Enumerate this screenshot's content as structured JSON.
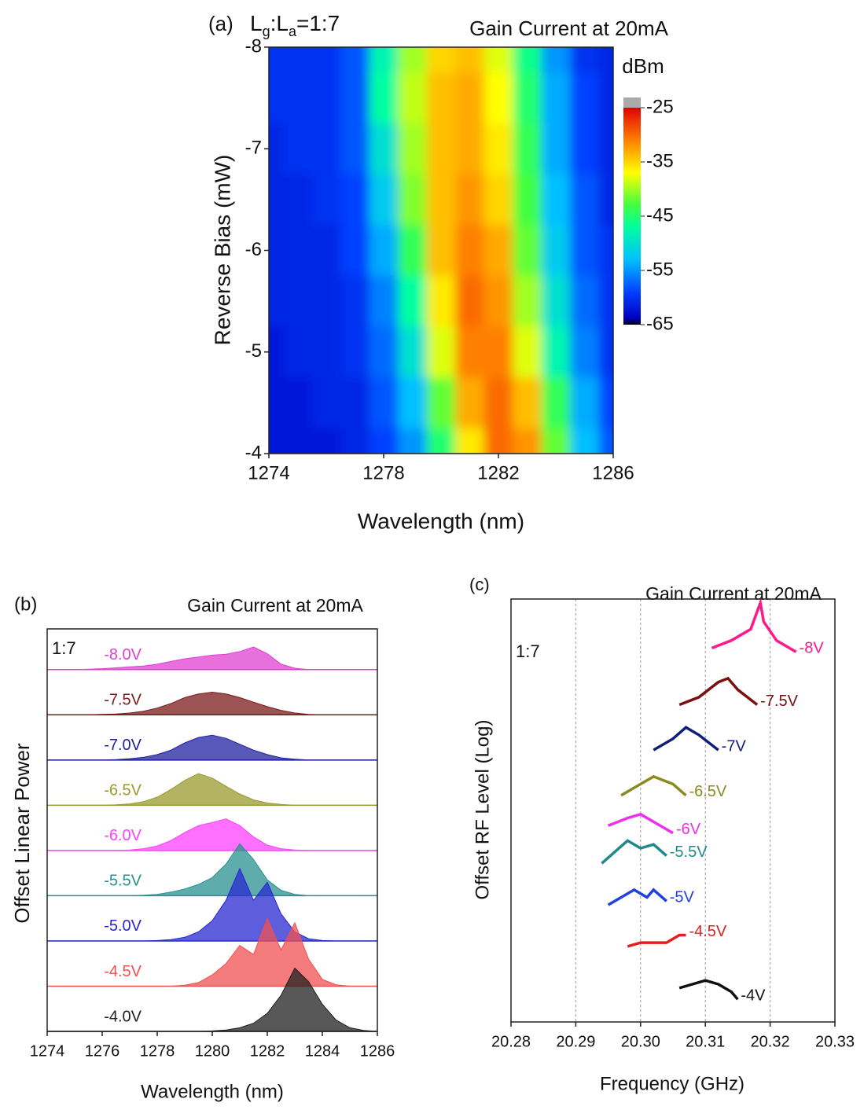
{
  "chart_data": [
    {
      "type": "heatmap",
      "panel_label": "(a)",
      "annotation_parts": [
        "L",
        "g",
        ":L",
        "a",
        "=1:7"
      ],
      "title": "Gain Current at 20mA",
      "colorbar_label": "dBm",
      "x_label": "Wavelength (nm)",
      "y_label": "Reverse Bias (mW)",
      "xlim": [
        1274,
        1286
      ],
      "xticks": [
        1274,
        1278,
        1282,
        1286
      ],
      "ylim": [
        -4,
        -8
      ],
      "yticks": [
        -8,
        -7,
        -6,
        -5,
        -4
      ],
      "x": [
        1274,
        1275,
        1276,
        1277,
        1278,
        1279,
        1280,
        1281,
        1282,
        1283,
        1284,
        1285,
        1286
      ],
      "y": [
        -8,
        -7.5,
        -7,
        -6.5,
        -6,
        -5.5,
        -5,
        -4.5,
        -4
      ],
      "z": [
        [
          -60,
          -60,
          -60,
          -58,
          -48,
          -40,
          -35,
          -34,
          -38,
          -46,
          -55,
          -60,
          -61
        ],
        [
          -60,
          -60,
          -60,
          -58,
          -47,
          -39,
          -34,
          -33,
          -37,
          -45,
          -54,
          -59,
          -61
        ],
        [
          -61,
          -60,
          -60,
          -58,
          -50,
          -40,
          -34,
          -33,
          -36,
          -44,
          -54,
          -59,
          -61
        ],
        [
          -61,
          -61,
          -60,
          -59,
          -52,
          -41,
          -34,
          -32,
          -35,
          -43,
          -53,
          -58,
          -61
        ],
        [
          -61,
          -61,
          -61,
          -59,
          -54,
          -44,
          -34,
          -31,
          -33,
          -42,
          -52,
          -58,
          -60
        ],
        [
          -61,
          -61,
          -61,
          -60,
          -56,
          -47,
          -36,
          -30,
          -32,
          -40,
          -50,
          -57,
          -60
        ],
        [
          -62,
          -61,
          -61,
          -60,
          -57,
          -50,
          -38,
          -31,
          -31,
          -38,
          -48,
          -56,
          -60
        ],
        [
          -62,
          -62,
          -61,
          -61,
          -58,
          -53,
          -42,
          -33,
          -30,
          -34,
          -44,
          -54,
          -59
        ],
        [
          -62,
          -62,
          -62,
          -61,
          -59,
          -55,
          -45,
          -36,
          -30,
          -32,
          -42,
          -53,
          -58
        ]
      ],
      "clim": [
        -65,
        -25
      ],
      "colorbar_ticks": [
        -25,
        -35,
        -45,
        -55,
        -65
      ]
    },
    {
      "type": "offset_area",
      "panel_label": "(b)",
      "title": "Gain Current at 20mA",
      "annotation": "1:7",
      "x_label": "Wavelength (nm)",
      "y_label": "Offset Linear Power",
      "xlim": [
        1274,
        1286
      ],
      "xticks": [
        1274,
        1276,
        1278,
        1280,
        1282,
        1284,
        1286
      ],
      "ylim": [
        0,
        8.9
      ],
      "x": [
        1274,
        1274.5,
        1275,
        1275.5,
        1276,
        1276.5,
        1277,
        1277.5,
        1278,
        1278.5,
        1279,
        1279.5,
        1280,
        1280.5,
        1281,
        1281.5,
        1282,
        1282.5,
        1283,
        1283.5,
        1284,
        1284.5,
        1285,
        1285.5,
        1286
      ],
      "series": [
        {
          "name": "-8.0V",
          "color": "#e040d0",
          "values": [
            0,
            0,
            0,
            0.01,
            0.02,
            0.04,
            0.06,
            0.08,
            0.12,
            0.18,
            0.24,
            0.28,
            0.32,
            0.34,
            0.4,
            0.5,
            0.35,
            0.12,
            0.03,
            0,
            0,
            0,
            0,
            0,
            0
          ]
        },
        {
          "name": "-7.5V",
          "color": "#7b1a1a",
          "values": [
            0,
            0,
            0,
            0,
            0.01,
            0.02,
            0.04,
            0.08,
            0.15,
            0.25,
            0.38,
            0.46,
            0.5,
            0.46,
            0.38,
            0.28,
            0.18,
            0.1,
            0.04,
            0.01,
            0,
            0,
            0,
            0,
            0
          ]
        },
        {
          "name": "-7.0V",
          "color": "#2020a0",
          "values": [
            0,
            0,
            0,
            0,
            0,
            0.01,
            0.03,
            0.06,
            0.12,
            0.22,
            0.38,
            0.5,
            0.55,
            0.48,
            0.35,
            0.22,
            0.12,
            0.05,
            0.02,
            0,
            0,
            0,
            0,
            0,
            0
          ]
        },
        {
          "name": "-6.5V",
          "color": "#9a9a30",
          "values": [
            0,
            0,
            0,
            0,
            0,
            0.01,
            0.03,
            0.08,
            0.18,
            0.35,
            0.55,
            0.7,
            0.6,
            0.42,
            0.25,
            0.12,
            0.05,
            0.02,
            0,
            0,
            0,
            0,
            0,
            0,
            0
          ]
        },
        {
          "name": "-6.0V",
          "color": "#ff40ff",
          "values": [
            0,
            0,
            0,
            0,
            0,
            0,
            0.01,
            0.04,
            0.1,
            0.22,
            0.4,
            0.55,
            0.62,
            0.7,
            0.55,
            0.3,
            0.12,
            0.04,
            0.01,
            0,
            0,
            0,
            0,
            0,
            0
          ]
        },
        {
          "name": "-5.5V",
          "color": "#2a9090",
          "values": [
            0,
            0,
            0,
            0,
            0,
            0,
            0,
            0.01,
            0.03,
            0.08,
            0.15,
            0.25,
            0.4,
            0.7,
            1.15,
            0.8,
            0.35,
            0.12,
            0.03,
            0,
            0,
            0,
            0,
            0,
            0
          ]
        },
        {
          "name": "-5.0V",
          "color": "#2828d0",
          "values": [
            0,
            0,
            0,
            0,
            0,
            0,
            0,
            0,
            0.01,
            0.03,
            0.08,
            0.2,
            0.45,
            0.9,
            1.6,
            0.9,
            1.3,
            0.6,
            0.2,
            0.05,
            0.01,
            0,
            0,
            0,
            0
          ]
        },
        {
          "name": "-4.5V",
          "color": "#f05050",
          "values": [
            0,
            0,
            0,
            0,
            0,
            0,
            0,
            0,
            0,
            0,
            0.02,
            0.08,
            0.25,
            0.5,
            0.9,
            0.7,
            1.5,
            0.8,
            1.4,
            0.6,
            0.15,
            0.03,
            0,
            0,
            0
          ]
        },
        {
          "name": "-4.0V",
          "color": "#202020",
          "values": [
            0,
            0,
            0,
            0,
            0,
            0,
            0,
            0,
            0,
            0,
            0,
            0,
            0.01,
            0.03,
            0.08,
            0.18,
            0.4,
            0.8,
            1.4,
            1.1,
            0.6,
            0.25,
            0.08,
            0.02,
            0
          ]
        }
      ]
    },
    {
      "type": "line",
      "panel_label": "(c)",
      "title": "Gain Current at 20mA",
      "annotation": "1:7",
      "x_label": "Frequency (GHz)",
      "y_label": "Offset RF Level (Log)",
      "xlim": [
        20.28,
        20.33
      ],
      "xticks": [
        20.28,
        20.29,
        {
          "value": 20.3,
          "label": "20.30"
        },
        20.31,
        20.32,
        20.33
      ],
      "ylim": [
        0,
        11.2
      ],
      "grid": true,
      "series": [
        {
          "name": "-8V",
          "color": "#ff1a8c",
          "x": [
            20.311,
            20.314,
            20.317,
            20.3185,
            20.319,
            20.321,
            20.324
          ],
          "values": [
            9.9,
            10.1,
            10.4,
            11.1,
            10.6,
            10.1,
            9.8
          ]
        },
        {
          "name": "-7.5V",
          "color": "#7a1010",
          "x": [
            20.306,
            20.309,
            20.312,
            20.3135,
            20.315,
            20.318
          ],
          "values": [
            8.4,
            8.6,
            9.0,
            9.1,
            8.8,
            8.4
          ]
        },
        {
          "name": "-7V",
          "color": "#10207a",
          "x": [
            20.302,
            20.305,
            20.307,
            20.309,
            20.312
          ],
          "values": [
            7.2,
            7.5,
            7.8,
            7.6,
            7.2
          ]
        },
        {
          "name": "-6.5V",
          "color": "#8a8a20",
          "x": [
            20.297,
            20.3,
            20.302,
            20.305,
            20.307
          ],
          "values": [
            6.0,
            6.3,
            6.5,
            6.3,
            6.0
          ]
        },
        {
          "name": "-6V",
          "color": "#ee30ee",
          "x": [
            20.295,
            20.298,
            20.3,
            20.302,
            20.305
          ],
          "values": [
            5.2,
            5.4,
            5.5,
            5.3,
            5.0
          ]
        },
        {
          "name": "-5.5V",
          "color": "#208a8a",
          "x": [
            20.294,
            20.296,
            20.298,
            20.3,
            20.302,
            20.304
          ],
          "values": [
            4.2,
            4.5,
            4.8,
            4.6,
            4.7,
            4.4
          ]
        },
        {
          "name": "-5V",
          "color": "#2040e0",
          "x": [
            20.295,
            20.297,
            20.299,
            20.301,
            20.302,
            20.304
          ],
          "values": [
            3.1,
            3.3,
            3.5,
            3.3,
            3.5,
            3.2
          ]
        },
        {
          "name": "-4.5V",
          "color": "#e02020",
          "x": [
            20.298,
            20.3,
            20.302,
            20.304,
            20.306,
            20.307
          ],
          "values": [
            2.0,
            2.1,
            2.1,
            2.1,
            2.3,
            2.3
          ]
        },
        {
          "name": "-4V",
          "color": "#101010",
          "x": [
            20.306,
            20.308,
            20.31,
            20.312,
            20.314,
            20.315
          ],
          "values": [
            0.9,
            1.0,
            1.1,
            1.0,
            0.8,
            0.6
          ]
        }
      ]
    }
  ]
}
